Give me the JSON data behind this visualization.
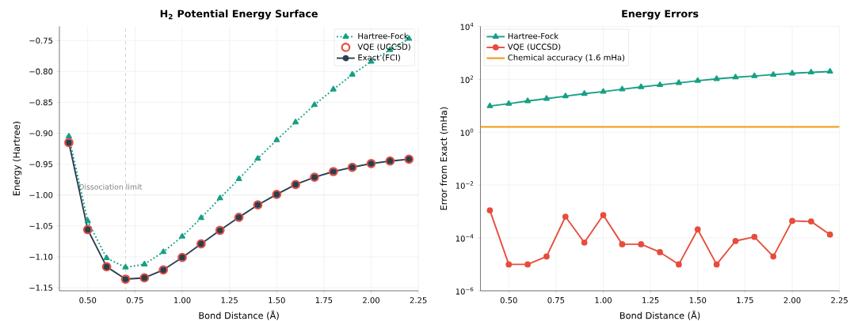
{
  "chart_data": [
    {
      "type": "line",
      "title": "H$_{2}$ Potential Energy Surface",
      "xlabel": "Bond Distance (Å)",
      "ylabel": "Energy (Hartree)",
      "x": [
        0.4,
        0.5,
        0.6,
        0.7,
        0.8,
        0.9,
        1.0,
        1.1,
        1.2,
        1.3,
        1.4,
        1.5,
        1.6,
        1.7,
        1.8,
        1.9,
        2.0,
        2.1,
        2.2
      ],
      "series": [
        {
          "name": "Hartree-Fock",
          "color": "#16a085",
          "marker": "triangle",
          "line_style": "dotted",
          "values": [
            -0.905,
            -1.042,
            -1.102,
            -1.117,
            -1.112,
            -1.092,
            -1.067,
            -1.037,
            -1.005,
            -0.974,
            -0.941,
            -0.911,
            -0.882,
            -0.854,
            -0.829,
            -0.805,
            -0.784,
            -0.765,
            -0.747
          ]
        },
        {
          "name": "VQE (UCCSD)",
          "type": "scatter",
          "color": "#e74c3c",
          "marker": "circle",
          "values": [
            -0.915,
            -1.056,
            -1.116,
            -1.136,
            -1.134,
            -1.121,
            -1.101,
            -1.079,
            -1.057,
            -1.036,
            -1.016,
            -0.999,
            -0.983,
            -0.971,
            -0.962,
            -0.955,
            -0.949,
            -0.945,
            -0.942
          ]
        },
        {
          "name": "Exact (FCI)",
          "color": "#2c3e50",
          "marker": "circle",
          "line_style": "solid",
          "values": [
            -0.915,
            -1.056,
            -1.116,
            -1.136,
            -1.134,
            -1.121,
            -1.101,
            -1.079,
            -1.057,
            -1.036,
            -1.016,
            -0.999,
            -0.983,
            -0.971,
            -0.962,
            -0.955,
            -0.949,
            -0.945,
            -0.942
          ]
        }
      ],
      "xlim": [
        0.35,
        2.25
      ],
      "ylim": [
        -1.155,
        -0.727
      ],
      "xticks": [
        {
          "value": 0.5,
          "label": "0.50"
        },
        {
          "value": 0.75,
          "label": "0.75"
        },
        {
          "value": 1.0,
          "label": "1.00"
        },
        {
          "value": 1.25,
          "label": "1.25"
        },
        {
          "value": 1.5,
          "label": "1.50"
        },
        {
          "value": 1.75,
          "label": "1.75"
        },
        {
          "value": 2.0,
          "label": "2.00"
        },
        {
          "value": 2.25,
          "label": "2.25"
        }
      ],
      "yticks": [
        {
          "value": -1.15,
          "label": "−1.15"
        },
        {
          "value": -1.1,
          "label": "−1.10"
        },
        {
          "value": -1.05,
          "label": "−1.05"
        },
        {
          "value": -1.0,
          "label": "−1.00"
        },
        {
          "value": -0.95,
          "label": "−0.95"
        },
        {
          "value": -0.9,
          "label": "−0.90"
        },
        {
          "value": -0.85,
          "label": "−0.85"
        },
        {
          "value": -0.8,
          "label": "−0.80"
        },
        {
          "value": -0.75,
          "label": "−0.75"
        }
      ],
      "ref_lines": [
        {
          "axis": "x",
          "value": 0.7,
          "color": "#c8c8c8",
          "line_style": "dashed"
        },
        {
          "axis": "y",
          "value": -1.0,
          "label": "Dissociation limit",
          "color": "#b4b4b4",
          "line_style": "dotted"
        }
      ],
      "grid": true,
      "legend": "top right"
    },
    {
      "type": "line",
      "title": "Energy Errors",
      "xlabel": "Bond Distance (Å)",
      "ylabel": "Error from Exact (mHa)",
      "log": "y",
      "x": [
        0.4,
        0.5,
        0.6,
        0.7,
        0.8,
        0.9,
        1.0,
        1.1,
        1.2,
        1.3,
        1.4,
        1.5,
        1.6,
        1.7,
        1.8,
        1.9,
        2.0,
        2.1,
        2.2
      ],
      "series": [
        {
          "name": "Hartree-Fock",
          "color": "#16a085",
          "marker": "triangle",
          "line_style": "solid",
          "values": [
            9.7,
            11.9,
            15,
            18.5,
            23,
            28.5,
            34,
            42,
            51,
            61,
            73,
            88,
            103,
            119,
            133,
            149,
            167,
            183,
            196
          ]
        },
        {
          "name": "VQE (UCCSD)",
          "color": "#e74c3c",
          "marker": "circle",
          "line_style": "solid",
          "values": [
            0.0011,
            1e-05,
            1e-05,
            2e-05,
            0.00064,
            6.7e-05,
            0.00073,
            5.8e-05,
            5.8e-05,
            2.9e-05,
            1e-05,
            0.00021,
            1e-05,
            7.7e-05,
            0.00011,
            2e-05,
            0.00044,
            0.00042,
            0.000134
          ]
        }
      ],
      "xlim": [
        0.35,
        2.25
      ],
      "ylim": [
        1e-06,
        10000
      ],
      "xticks": [
        {
          "value": 0.5,
          "label": "0.50"
        },
        {
          "value": 0.75,
          "label": "0.75"
        },
        {
          "value": 1.0,
          "label": "1.00"
        },
        {
          "value": 1.25,
          "label": "1.25"
        },
        {
          "value": 1.5,
          "label": "1.50"
        },
        {
          "value": 1.75,
          "label": "1.75"
        },
        {
          "value": 2.0,
          "label": "2.00"
        },
        {
          "value": 2.25,
          "label": "2.25"
        }
      ],
      "yticks": [
        {
          "value": 1e-06,
          "label": "10$^{−6}$"
        },
        {
          "value": 0.0001,
          "label": "10$^{−4}$"
        },
        {
          "value": 0.01,
          "label": "10$^{−2}$"
        },
        {
          "value": 1,
          "label": "10$^{0}$"
        },
        {
          "value": 100,
          "label": "10$^{2}$"
        },
        {
          "value": 10000,
          "label": "10$^{4}$"
        }
      ],
      "ref_lines": [
        {
          "axis": "y",
          "value": 1.6,
          "label": "Chemical accuracy (1.6 mHa)",
          "color": "#f39c12",
          "line_style": "solid"
        }
      ],
      "grid": true,
      "legend": "top left"
    }
  ]
}
